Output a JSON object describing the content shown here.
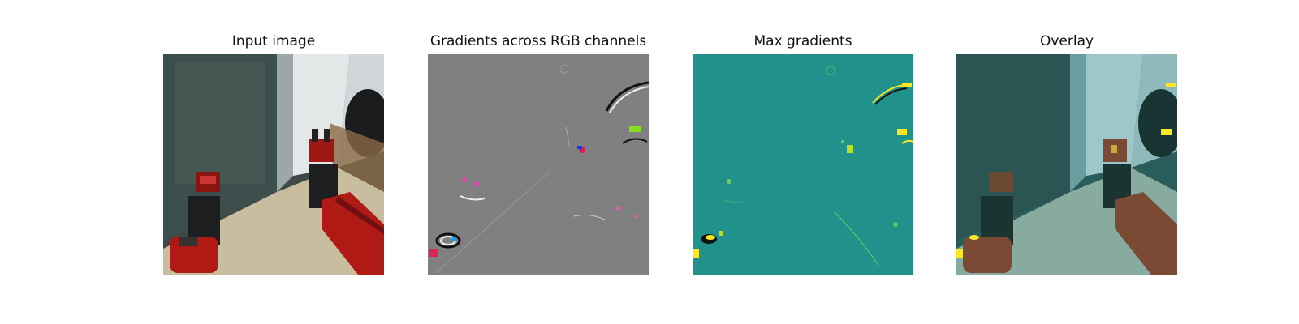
{
  "panels": [
    {
      "title": "Input image"
    },
    {
      "title": "Gradients across RGB channels"
    },
    {
      "title": "Max gradients"
    },
    {
      "title": "Overlay"
    }
  ],
  "colors": {
    "gradient_background": "#808080",
    "max_gradient_background": "#21918c",
    "highlight_yellow": "#fde725",
    "robot_red": "#b01a14",
    "floor_beige": "#c9bd9f"
  }
}
